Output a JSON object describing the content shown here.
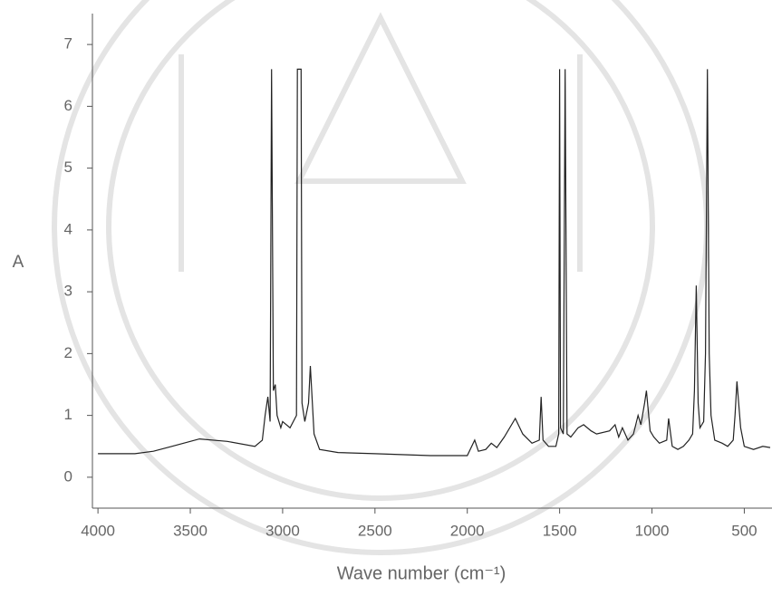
{
  "chart_data": {
    "type": "line",
    "ylabel": "A",
    "xlabel": "Wave number (cm⁻¹)",
    "x": [
      4000,
      3800,
      3700,
      3600,
      3450,
      3300,
      3150,
      3110,
      3095,
      3080,
      3068,
      3060,
      3050,
      3040,
      3030,
      3010,
      3000,
      2960,
      2925,
      2920,
      2900,
      2895,
      2880,
      2860,
      2850,
      2830,
      2800,
      2700,
      2500,
      2200,
      2000,
      1960,
      1940,
      1900,
      1870,
      1840,
      1800,
      1740,
      1700,
      1650,
      1610,
      1600,
      1590,
      1560,
      1520,
      1505,
      1500,
      1495,
      1480,
      1470,
      1460,
      1440,
      1400,
      1370,
      1330,
      1300,
      1230,
      1200,
      1180,
      1160,
      1130,
      1100,
      1075,
      1060,
      1040,
      1030,
      1010,
      990,
      960,
      920,
      910,
      890,
      860,
      830,
      800,
      780,
      770,
      760,
      750,
      740,
      720,
      710,
      700,
      690,
      680,
      660,
      620,
      590,
      560,
      550,
      540,
      520,
      500,
      450,
      400,
      360
    ],
    "values": [
      0.38,
      0.38,
      0.42,
      0.5,
      0.62,
      0.58,
      0.5,
      0.6,
      1.0,
      1.3,
      0.9,
      6.6,
      1.4,
      1.5,
      1.0,
      0.8,
      0.9,
      0.8,
      1.0,
      6.6,
      6.6,
      1.2,
      0.9,
      1.2,
      1.8,
      0.7,
      0.45,
      0.4,
      0.38,
      0.35,
      0.35,
      0.6,
      0.42,
      0.45,
      0.55,
      0.48,
      0.65,
      0.95,
      0.7,
      0.55,
      0.6,
      1.3,
      0.6,
      0.5,
      0.5,
      0.7,
      6.6,
      0.8,
      0.7,
      6.6,
      0.7,
      0.65,
      0.8,
      0.85,
      0.75,
      0.7,
      0.75,
      0.85,
      0.65,
      0.8,
      0.6,
      0.7,
      1.0,
      0.85,
      1.2,
      1.4,
      0.75,
      0.65,
      0.55,
      0.6,
      0.95,
      0.5,
      0.45,
      0.5,
      0.6,
      0.7,
      1.4,
      3.1,
      1.2,
      0.8,
      0.9,
      2.0,
      6.6,
      2.0,
      1.0,
      0.6,
      0.55,
      0.5,
      0.6,
      1.0,
      1.55,
      0.8,
      0.5,
      0.45,
      0.5,
      0.48
    ],
    "color": "#222222",
    "xlim": [
      4030,
      350
    ],
    "ylim": [
      -0.5,
      7.5
    ],
    "xticks": [
      4000,
      3500,
      3000,
      2500,
      2000,
      1500,
      1000,
      500
    ],
    "yticks": [
      0,
      1,
      2,
      3,
      4,
      5,
      6,
      7
    ]
  }
}
